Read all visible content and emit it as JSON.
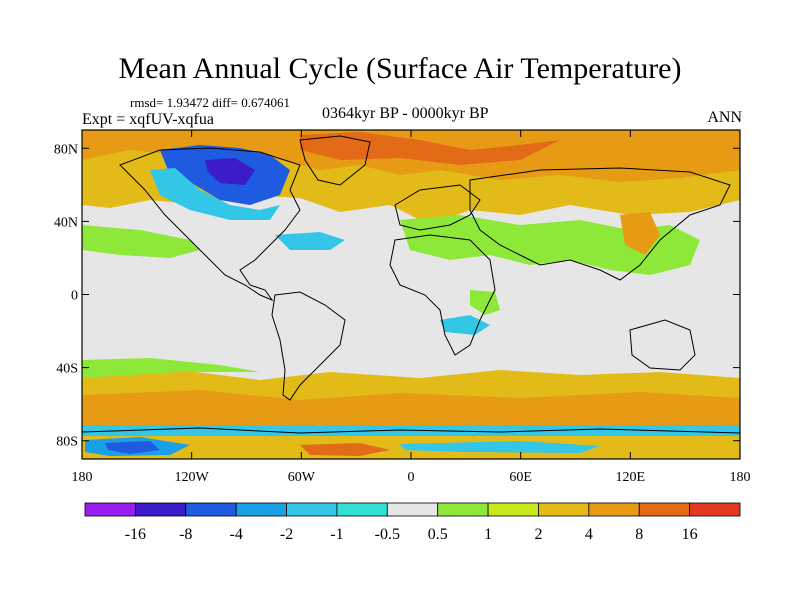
{
  "title": "Mean Annual Cycle (Surface Air Temperature)",
  "stats_line": "rmsd= 1.93472 diff= 0.674061",
  "experiment_label": "Expt = xqfUV-xqfua",
  "period_label": "0364kyr BP - 0000kyr BP",
  "season_label": "ANN",
  "axes": {
    "lon_ticks": [
      {
        "lon": -180,
        "label": "180"
      },
      {
        "lon": -120,
        "label": "120W"
      },
      {
        "lon": -60,
        "label": "60W"
      },
      {
        "lon": 0,
        "label": "0"
      },
      {
        "lon": 60,
        "label": "60E"
      },
      {
        "lon": 120,
        "label": "120E"
      },
      {
        "lon": 180,
        "label": "180"
      }
    ],
    "lat_ticks": [
      {
        "lat": 80,
        "label": "80N"
      },
      {
        "lat": 40,
        "label": "40N"
      },
      {
        "lat": 0,
        "label": "0"
      },
      {
        "lat": -40,
        "label": "40S"
      },
      {
        "lat": -80,
        "label": "80S"
      }
    ],
    "lat_range": [
      -90,
      90
    ],
    "lon_range": [
      -180,
      180
    ]
  },
  "colorbar": {
    "colors": [
      "#9a1df2",
      "#3b1cc8",
      "#1f5be0",
      "#1aa0e6",
      "#33c6e6",
      "#2fe0d3",
      "#e6e6e6",
      "#8ee83a",
      "#c8e81c",
      "#e3bb19",
      "#e79a14",
      "#e36a16",
      "#e2391f"
    ],
    "labels": [
      "-16",
      "-8",
      "-4",
      "-2",
      "-1",
      "-0.5",
      "0.5",
      "1",
      "2",
      "4",
      "8",
      "16"
    ]
  },
  "regions": {
    "arctic_warm": "#e79a14",
    "north_america_cold": "#1f5be0",
    "southern_ocean_warm": "#e3bb19",
    "antarctica_cold": "#1aa0e6",
    "neutral": "#e6e6e6"
  }
}
